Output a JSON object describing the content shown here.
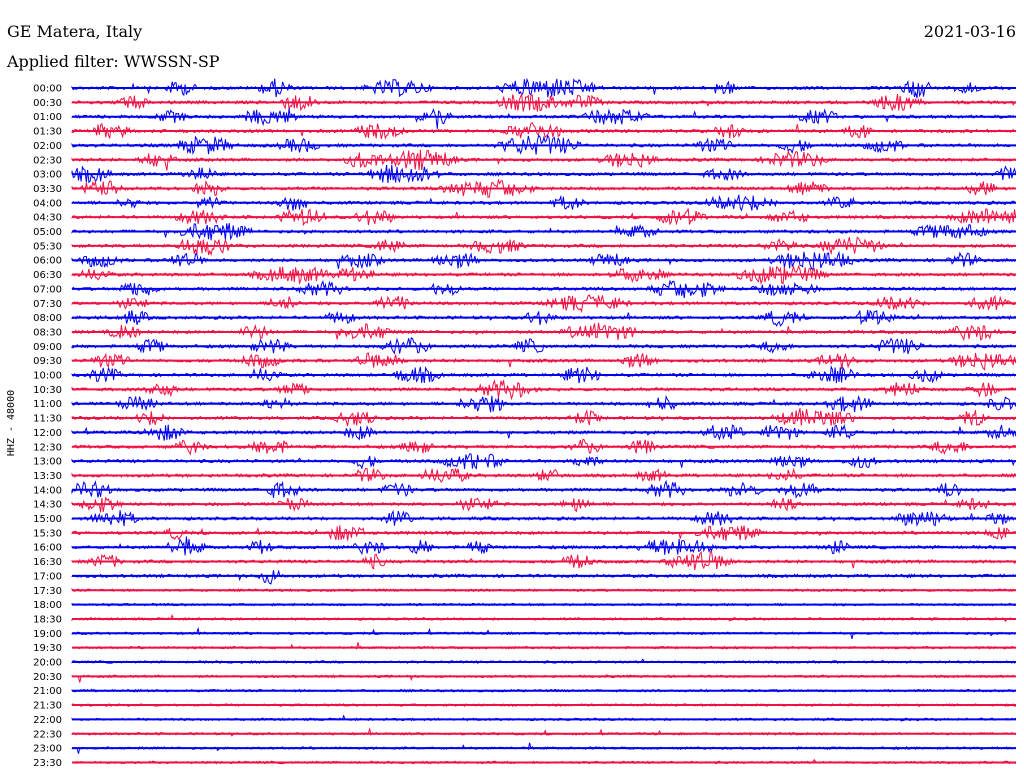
{
  "header": {
    "station": "GE Matera, Italy",
    "date": "2021-03-16",
    "filter": "Applied filter: WWSSN-SP"
  },
  "chart_data": {
    "type": "line",
    "title": "GE Matera, Italy",
    "subtitle": "Applied filter: WWSSN-SP",
    "date": "2021-03-16",
    "ylabel": "HHZ - 48000",
    "row_labels": [
      "00:00",
      "00:30",
      "01:00",
      "01:30",
      "02:00",
      "02:30",
      "03:00",
      "03:30",
      "04:00",
      "04:30",
      "05:00",
      "05:30",
      "06:00",
      "06:30",
      "07:00",
      "07:30",
      "08:00",
      "08:30",
      "09:00",
      "09:30",
      "10:00",
      "10:30",
      "11:00",
      "11:30",
      "12:00",
      "12:30",
      "13:00",
      "13:30",
      "14:00",
      "14:30",
      "15:00",
      "15:30",
      "16:00",
      "16:30",
      "17:00",
      "17:30",
      "18:00",
      "18:30",
      "19:00",
      "19:30",
      "20:00",
      "20:30",
      "21:00",
      "21:30",
      "22:00",
      "22:30",
      "23:00",
      "23:30"
    ],
    "series": [
      {
        "color": "#0000ee"
      },
      {
        "color": "#ee1144"
      }
    ],
    "last_active_row_index": 34,
    "bursts": [
      [
        0,
        0.1,
        0.03,
        6
      ],
      [
        0,
        0.2,
        0.03,
        8
      ],
      [
        0,
        0.31,
        0.07,
        7
      ],
      [
        0,
        0.45,
        0.11,
        9
      ],
      [
        0,
        0.68,
        0.02,
        7
      ],
      [
        0,
        0.88,
        0.03,
        9
      ],
      [
        0,
        0.94,
        0.02,
        6
      ],
      [
        1,
        0.05,
        0.03,
        6
      ],
      [
        1,
        0.22,
        0.04,
        7
      ],
      [
        1,
        0.45,
        0.07,
        8
      ],
      [
        1,
        0.52,
        0.04,
        6
      ],
      [
        1,
        0.85,
        0.05,
        7
      ],
      [
        2,
        0.09,
        0.03,
        5
      ],
      [
        2,
        0.18,
        0.06,
        7
      ],
      [
        2,
        0.37,
        0.03,
        7
      ],
      [
        2,
        0.54,
        0.07,
        7
      ],
      [
        2,
        0.77,
        0.04,
        6
      ],
      [
        3,
        0.02,
        0.04,
        7
      ],
      [
        3,
        0.3,
        0.05,
        7
      ],
      [
        3,
        0.46,
        0.06,
        8
      ],
      [
        3,
        0.68,
        0.03,
        6
      ],
      [
        3,
        0.82,
        0.03,
        6
      ],
      [
        4,
        0.11,
        0.06,
        8
      ],
      [
        4,
        0.22,
        0.04,
        6
      ],
      [
        4,
        0.45,
        0.09,
        9
      ],
      [
        4,
        0.66,
        0.04,
        6
      ],
      [
        4,
        0.75,
        0.03,
        6
      ],
      [
        4,
        0.84,
        0.04,
        6
      ],
      [
        5,
        0.07,
        0.04,
        6
      ],
      [
        5,
        0.29,
        0.04,
        7
      ],
      [
        5,
        0.33,
        0.08,
        9
      ],
      [
        5,
        0.56,
        0.06,
        7
      ],
      [
        5,
        0.73,
        0.07,
        7
      ],
      [
        6,
        0.0,
        0.04,
        7
      ],
      [
        6,
        0.12,
        0.03,
        6
      ],
      [
        6,
        0.31,
        0.08,
        9
      ],
      [
        6,
        0.67,
        0.04,
        5
      ],
      [
        6,
        0.98,
        0.02,
        6
      ],
      [
        7,
        0.01,
        0.04,
        7
      ],
      [
        7,
        0.13,
        0.03,
        6
      ],
      [
        7,
        0.39,
        0.1,
        8
      ],
      [
        7,
        0.76,
        0.04,
        6
      ],
      [
        7,
        0.95,
        0.03,
        6
      ],
      [
        8,
        0.05,
        0.02,
        5
      ],
      [
        8,
        0.13,
        0.03,
        6
      ],
      [
        8,
        0.22,
        0.03,
        7
      ],
      [
        8,
        0.51,
        0.03,
        6
      ],
      [
        8,
        0.67,
        0.08,
        7
      ],
      [
        8,
        0.8,
        0.03,
        5
      ],
      [
        9,
        0.11,
        0.05,
        6
      ],
      [
        9,
        0.22,
        0.05,
        7
      ],
      [
        9,
        0.3,
        0.04,
        7
      ],
      [
        9,
        0.62,
        0.05,
        7
      ],
      [
        9,
        0.74,
        0.04,
        5
      ],
      [
        9,
        0.93,
        0.1,
        8
      ],
      [
        10,
        0.11,
        0.08,
        8
      ],
      [
        10,
        0.58,
        0.04,
        5
      ],
      [
        10,
        0.89,
        0.08,
        7
      ],
      [
        11,
        0.11,
        0.06,
        8
      ],
      [
        11,
        0.32,
        0.03,
        6
      ],
      [
        11,
        0.42,
        0.06,
        6
      ],
      [
        11,
        0.73,
        0.04,
        5
      ],
      [
        11,
        0.79,
        0.07,
        8
      ],
      [
        12,
        0.01,
        0.04,
        6
      ],
      [
        12,
        0.1,
        0.04,
        6
      ],
      [
        12,
        0.28,
        0.05,
        6
      ],
      [
        12,
        0.38,
        0.05,
        7
      ],
      [
        12,
        0.55,
        0.04,
        6
      ],
      [
        12,
        0.74,
        0.09,
        9
      ],
      [
        12,
        0.93,
        0.03,
        6
      ],
      [
        13,
        0.01,
        0.03,
        5
      ],
      [
        13,
        0.19,
        0.09,
        7
      ],
      [
        13,
        0.28,
        0.04,
        6
      ],
      [
        13,
        0.57,
        0.06,
        6
      ],
      [
        13,
        0.7,
        0.1,
        8
      ],
      [
        14,
        0.05,
        0.04,
        6
      ],
      [
        14,
        0.24,
        0.05,
        6
      ],
      [
        14,
        0.38,
        0.03,
        6
      ],
      [
        14,
        0.61,
        0.08,
        8
      ],
      [
        14,
        0.72,
        0.07,
        6
      ],
      [
        15,
        0.05,
        0.03,
        5
      ],
      [
        15,
        0.21,
        0.03,
        6
      ],
      [
        15,
        0.32,
        0.04,
        7
      ],
      [
        15,
        0.5,
        0.09,
        7
      ],
      [
        15,
        0.85,
        0.05,
        6
      ],
      [
        15,
        0.95,
        0.04,
        6
      ],
      [
        16,
        0.05,
        0.03,
        6
      ],
      [
        16,
        0.27,
        0.03,
        5
      ],
      [
        16,
        0.48,
        0.03,
        6
      ],
      [
        16,
        0.73,
        0.04,
        7
      ],
      [
        16,
        0.83,
        0.04,
        7
      ],
      [
        17,
        0.04,
        0.03,
        6
      ],
      [
        17,
        0.18,
        0.03,
        6
      ],
      [
        17,
        0.28,
        0.06,
        7
      ],
      [
        17,
        0.52,
        0.08,
        8
      ],
      [
        17,
        0.93,
        0.05,
        7
      ],
      [
        18,
        0.07,
        0.03,
        6
      ],
      [
        18,
        0.19,
        0.04,
        6
      ],
      [
        18,
        0.33,
        0.05,
        7
      ],
      [
        18,
        0.47,
        0.03,
        6
      ],
      [
        18,
        0.73,
        0.03,
        5
      ],
      [
        18,
        0.85,
        0.05,
        7
      ],
      [
        19,
        0.02,
        0.04,
        6
      ],
      [
        19,
        0.18,
        0.04,
        6
      ],
      [
        19,
        0.3,
        0.05,
        7
      ],
      [
        19,
        0.58,
        0.04,
        6
      ],
      [
        19,
        0.79,
        0.04,
        6
      ],
      [
        19,
        0.93,
        0.07,
        8
      ],
      [
        20,
        0.02,
        0.03,
        6
      ],
      [
        20,
        0.19,
        0.03,
        6
      ],
      [
        20,
        0.34,
        0.05,
        7
      ],
      [
        20,
        0.52,
        0.04,
        7
      ],
      [
        20,
        0.78,
        0.05,
        7
      ],
      [
        20,
        0.89,
        0.03,
        6
      ],
      [
        21,
        0.08,
        0.03,
        6
      ],
      [
        21,
        0.22,
        0.03,
        6
      ],
      [
        21,
        0.43,
        0.06,
        8
      ],
      [
        21,
        0.86,
        0.04,
        6
      ],
      [
        21,
        0.95,
        0.03,
        6
      ],
      [
        22,
        0.05,
        0.04,
        6
      ],
      [
        22,
        0.2,
        0.03,
        5
      ],
      [
        22,
        0.41,
        0.05,
        8
      ],
      [
        22,
        0.61,
        0.03,
        6
      ],
      [
        22,
        0.8,
        0.05,
        7
      ],
      [
        22,
        0.97,
        0.03,
        6
      ],
      [
        23,
        0.07,
        0.03,
        6
      ],
      [
        23,
        0.28,
        0.04,
        7
      ],
      [
        23,
        0.53,
        0.03,
        6
      ],
      [
        23,
        0.74,
        0.09,
        8
      ],
      [
        23,
        0.94,
        0.03,
        6
      ],
      [
        24,
        0.08,
        0.04,
        7
      ],
      [
        24,
        0.29,
        0.03,
        6
      ],
      [
        24,
        0.67,
        0.04,
        7
      ],
      [
        24,
        0.73,
        0.04,
        7
      ],
      [
        24,
        0.8,
        0.03,
        6
      ],
      [
        24,
        0.97,
        0.03,
        6
      ],
      [
        25,
        0.11,
        0.03,
        6
      ],
      [
        25,
        0.19,
        0.04,
        7
      ],
      [
        25,
        0.35,
        0.03,
        6
      ],
      [
        25,
        0.53,
        0.03,
        6
      ],
      [
        25,
        0.59,
        0.03,
        6
      ],
      [
        25,
        0.91,
        0.04,
        6
      ],
      [
        26,
        0.3,
        0.02,
        6
      ],
      [
        26,
        0.39,
        0.07,
        7
      ],
      [
        26,
        0.53,
        0.03,
        5
      ],
      [
        26,
        0.74,
        0.04,
        7
      ],
      [
        26,
        0.82,
        0.03,
        6
      ],
      [
        27,
        0.3,
        0.03,
        6
      ],
      [
        27,
        0.37,
        0.05,
        7
      ],
      [
        27,
        0.49,
        0.03,
        5
      ],
      [
        27,
        0.6,
        0.03,
        5
      ],
      [
        27,
        0.74,
        0.03,
        6
      ],
      [
        28,
        0.0,
        0.04,
        7
      ],
      [
        28,
        0.2,
        0.04,
        7
      ],
      [
        28,
        0.33,
        0.03,
        6
      ],
      [
        28,
        0.61,
        0.04,
        7
      ],
      [
        28,
        0.69,
        0.04,
        6
      ],
      [
        28,
        0.75,
        0.04,
        7
      ],
      [
        28,
        0.92,
        0.02,
        6
      ],
      [
        29,
        0.01,
        0.04,
        7
      ],
      [
        29,
        0.22,
        0.03,
        5
      ],
      [
        29,
        0.41,
        0.04,
        6
      ],
      [
        29,
        0.52,
        0.03,
        6
      ],
      [
        29,
        0.74,
        0.03,
        5
      ],
      [
        29,
        0.94,
        0.03,
        5
      ],
      [
        30,
        0.02,
        0.05,
        7
      ],
      [
        30,
        0.33,
        0.03,
        6
      ],
      [
        30,
        0.66,
        0.04,
        6
      ],
      [
        30,
        0.87,
        0.06,
        7
      ],
      [
        30,
        0.97,
        0.02,
        6
      ],
      [
        31,
        0.1,
        0.02,
        5
      ],
      [
        31,
        0.27,
        0.04,
        7
      ],
      [
        31,
        0.66,
        0.07,
        7
      ],
      [
        31,
        0.97,
        0.02,
        6
      ],
      [
        32,
        0.1,
        0.04,
        7
      ],
      [
        32,
        0.19,
        0.02,
        6
      ],
      [
        32,
        0.3,
        0.03,
        6
      ],
      [
        32,
        0.36,
        0.02,
        6
      ],
      [
        32,
        0.42,
        0.02,
        6
      ],
      [
        32,
        0.6,
        0.08,
        8
      ],
      [
        32,
        0.8,
        0.02,
        6
      ],
      [
        33,
        0.02,
        0.03,
        6
      ],
      [
        33,
        0.31,
        0.02,
        6
      ],
      [
        33,
        0.52,
        0.03,
        6
      ],
      [
        33,
        0.63,
        0.07,
        9
      ],
      [
        34,
        0.2,
        0.02,
        7
      ]
    ]
  }
}
